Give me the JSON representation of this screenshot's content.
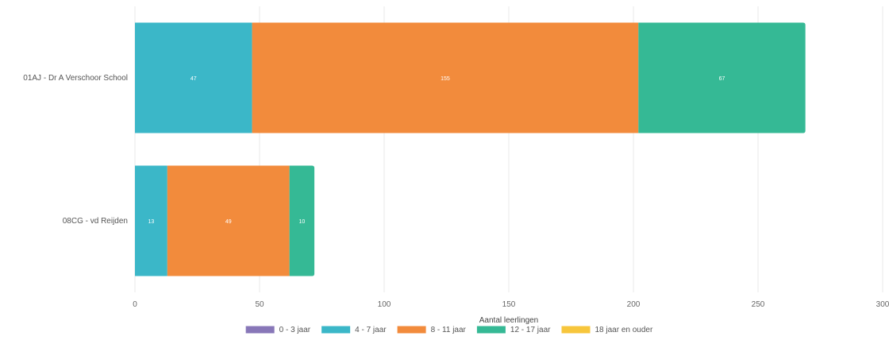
{
  "chart_data": {
    "type": "bar",
    "orientation": "horizontal",
    "stacked": true,
    "categories": [
      "01AJ - Dr A Verschoor School",
      "08CG - vd Reijden"
    ],
    "series": [
      {
        "name": "0 - 3 jaar",
        "color": "#8877b8",
        "values": [
          0,
          0
        ]
      },
      {
        "name": "4 - 7 jaar",
        "color": "#3bb7c8",
        "values": [
          47,
          13
        ]
      },
      {
        "name": "8 - 11 jaar",
        "color": "#f28b3c",
        "values": [
          155,
          49
        ]
      },
      {
        "name": "12 - 17 jaar",
        "color": "#35b995",
        "values": [
          67,
          10
        ]
      },
      {
        "name": "18 jaar en ouder",
        "color": "#f7c63c",
        "values": [
          0,
          0
        ]
      }
    ],
    "data_labels": [
      [
        "",
        "47",
        "155",
        "67",
        ""
      ],
      [
        "",
        "13",
        "49",
        "10",
        ""
      ]
    ],
    "x_ticks": [
      "0",
      "50",
      "100",
      "150",
      "200",
      "250",
      "300"
    ],
    "xlim": [
      0,
      300
    ],
    "xlabel": "Aantal leerlingen",
    "title": "",
    "grid": true,
    "legend_position": "bottom-center"
  }
}
